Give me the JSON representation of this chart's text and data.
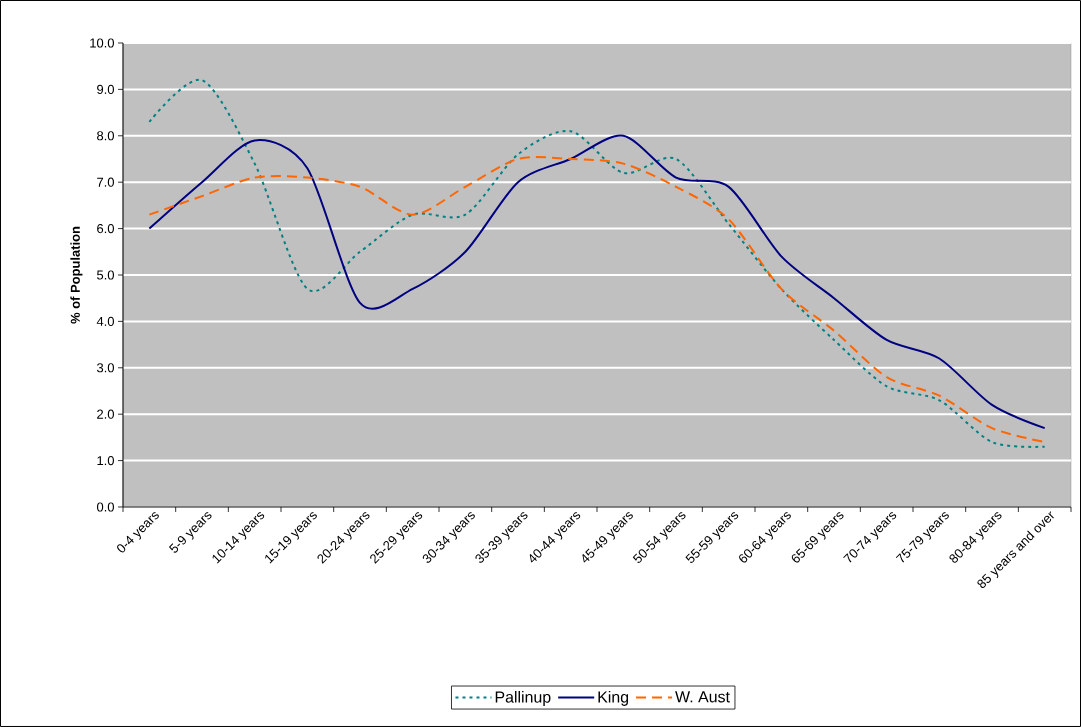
{
  "chart_data": {
    "type": "line",
    "ylabel": "% of Population",
    "categories": [
      "0-4 years",
      "5-9 years",
      "10-14 years",
      "15-19 years",
      "20-24 years",
      "25-29 years",
      "30-34 years",
      "35-39 years",
      "40-44 years",
      "45-49 years",
      "50-54 years",
      "55-59 years",
      "60-64 years",
      "65-69 years",
      "70-74 years",
      "75-79 years",
      "80-84 years",
      "85 years and over"
    ],
    "series": [
      {
        "name": "Pallinup",
        "color": "#008080",
        "line_style": "dotted",
        "values": [
          8.3,
          9.2,
          7.4,
          4.7,
          5.5,
          6.3,
          6.3,
          7.6,
          8.1,
          7.2,
          7.5,
          6.1,
          4.7,
          3.6,
          2.6,
          2.3,
          1.4,
          1.3
        ]
      },
      {
        "name": "King",
        "color": "#000080",
        "line_style": "solid",
        "values": [
          6.0,
          7.0,
          7.9,
          7.3,
          4.4,
          4.7,
          5.5,
          7.0,
          7.5,
          8.0,
          7.1,
          6.9,
          5.4,
          4.5,
          3.6,
          3.2,
          2.2,
          1.7
        ]
      },
      {
        "name": "W. Aust",
        "color": "#ff6600",
        "line_style": "dashed",
        "values": [
          6.3,
          6.7,
          7.1,
          7.1,
          6.9,
          6.3,
          6.9,
          7.5,
          7.5,
          7.4,
          6.9,
          6.2,
          4.7,
          3.8,
          2.8,
          2.4,
          1.7,
          1.4
        ]
      }
    ],
    "ylim": [
      0,
      10
    ],
    "yticks": [
      {
        "value": 0,
        "label": "0.0"
      },
      {
        "value": 1,
        "label": "1.0"
      },
      {
        "value": 2,
        "label": "2.0"
      },
      {
        "value": 3,
        "label": "3.0"
      },
      {
        "value": 4,
        "label": "4.0"
      },
      {
        "value": 5,
        "label": "5.0"
      },
      {
        "value": 6,
        "label": "6.0"
      },
      {
        "value": 7,
        "label": "7.0"
      },
      {
        "value": 8,
        "label": "8.0"
      },
      {
        "value": 9,
        "label": "9.0"
      },
      {
        "value": 10,
        "label": "10.0"
      }
    ],
    "grid": "y",
    "legend": "bottom",
    "marker": "none"
  }
}
